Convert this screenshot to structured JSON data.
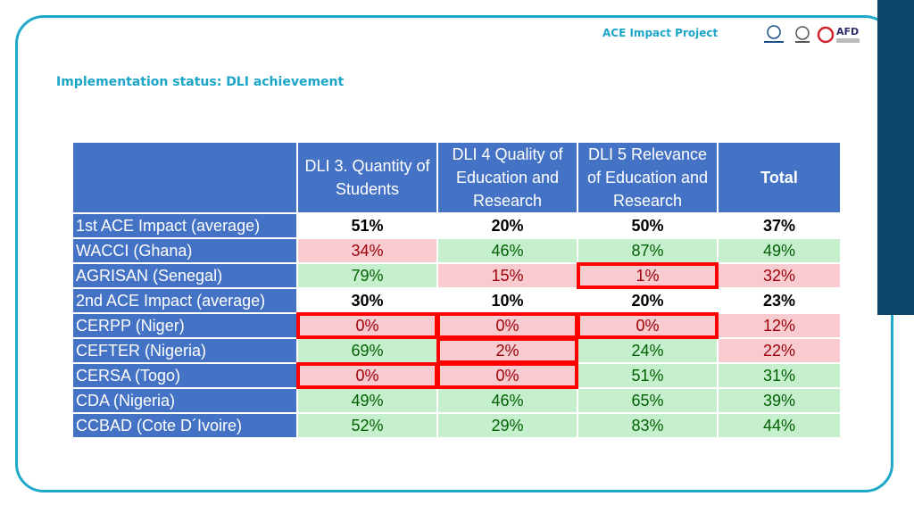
{
  "header": {
    "project": "ACE Impact Project",
    "title": "Implementation status: DLI achievement",
    "logos": {
      "afd": "AFD"
    }
  },
  "table": {
    "columns": [
      "",
      "DLI 3. Quantity of Students",
      "DLI 4 Quality of Education and Research",
      "DLI 5 Relevance of Education and Research",
      "Total"
    ],
    "rows": [
      [
        "1st ACE Impact (average)",
        "51%",
        "20%",
        "50%",
        "37%"
      ],
      [
        "WACCI (Ghana)",
        "34%",
        "46%",
        "87%",
        "49%"
      ],
      [
        "AGRISAN (Senegal)",
        "79%",
        "15%",
        "1%",
        "32%"
      ],
      [
        "2nd ACE Impact (average)",
        "30%",
        "10%",
        "20%",
        "23%"
      ],
      [
        "CERPP (Niger)",
        "0%",
        "0%",
        "0%",
        "12%"
      ],
      [
        "CEFTER (Nigeria)",
        "69%",
        "2%",
        "24%",
        "22%"
      ],
      [
        "CERSA (Togo)",
        "0%",
        "0%",
        "51%",
        "31%"
      ],
      [
        "CDA (Nigeria)",
        "49%",
        "46%",
        "65%",
        "39%"
      ],
      [
        "CCBAD (Cote D´Ivoire)",
        "52%",
        "29%",
        "83%",
        "44%"
      ]
    ],
    "cell_fills": [
      [
        "#ffffff",
        "#ffffff",
        "#ffffff",
        "#ffffff"
      ],
      [
        "#f8cbd0",
        "#c6efce",
        "#c6efce",
        "#c6efce"
      ],
      [
        "#c6efce",
        "#f8cbd0",
        "#f8cbd0",
        "#f8cbd0"
      ],
      [
        "#ffffff",
        "#ffffff",
        "#ffffff",
        "#ffffff"
      ],
      [
        "#f8cbd0",
        "#f8cbd0",
        "#f8cbd0",
        "#f8cbd0"
      ],
      [
        "#c6efce",
        "#f8cbd0",
        "#c6efce",
        "#f8cbd0"
      ],
      [
        "#f8cbd0",
        "#f8cbd0",
        "#c6efce",
        "#c6efce"
      ],
      [
        "#c6efce",
        "#c6efce",
        "#c6efce",
        "#c6efce"
      ],
      [
        "#c6efce",
        "#c6efce",
        "#c6efce",
        "#c6efce"
      ]
    ],
    "highlighted": [
      [
        2,
        3
      ],
      [
        4,
        1
      ],
      [
        4,
        2
      ],
      [
        4,
        3
      ],
      [
        5,
        2
      ],
      [
        6,
        1
      ],
      [
        6,
        2
      ]
    ]
  }
}
